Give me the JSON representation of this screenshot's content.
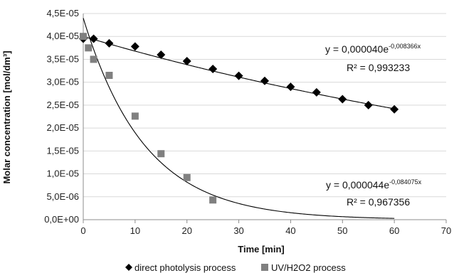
{
  "chart_data": {
    "type": "scatter",
    "title": "",
    "xlabel": "Time [min]",
    "ylabel": "Molar concentration [mol/dm³]",
    "xlim": [
      0,
      70
    ],
    "ylim": [
      0,
      4.5e-05
    ],
    "x_ticks": [
      0,
      10,
      20,
      30,
      40,
      50,
      60,
      70
    ],
    "x_tick_labels": [
      "0",
      "10",
      "20",
      "30",
      "40",
      "50",
      "60",
      "70"
    ],
    "y_ticks": [
      0,
      5e-06,
      1e-05,
      1.5e-05,
      2e-05,
      2.5e-05,
      3e-05,
      3.5e-05,
      4e-05,
      4.5e-05
    ],
    "y_tick_labels": [
      "0,0E+00",
      "5,0E-06",
      "1,0E-05",
      "1,5E-05",
      "2,0E-05",
      "2,5E-05",
      "3,0E-05",
      "3,5E-05",
      "4,0E-05",
      "4,5E-05"
    ],
    "grid": "horizontal",
    "legend_position": "bottom",
    "series": [
      {
        "name": "direct photolysis process",
        "marker": "diamond",
        "color": "#000000",
        "x": [
          0,
          2,
          5,
          10,
          15,
          20,
          25,
          30,
          35,
          40,
          45,
          50,
          55,
          60
        ],
        "y": [
          3.95e-05,
          3.95e-05,
          3.85e-05,
          3.78e-05,
          3.6e-05,
          3.46e-05,
          3.29e-05,
          3.14e-05,
          3.03e-05,
          2.9e-05,
          2.78e-05,
          2.63e-05,
          2.5e-05,
          2.41e-05
        ],
        "trendline": {
          "type": "exponential",
          "a": 4e-05,
          "k": -0.008366,
          "x_range": [
            0,
            60
          ],
          "equation_prefix": "y = 0,000040e",
          "equation_exponent": "-0,008366x",
          "r2_label": "R² = 0,993233"
        }
      },
      {
        "name": "UV/H2O2 process",
        "marker": "square",
        "color": "#808080",
        "x": [
          0,
          1,
          2,
          5,
          10,
          15,
          20,
          25
        ],
        "y": [
          4e-05,
          3.75e-05,
          3.5e-05,
          3.15e-05,
          2.26e-05,
          1.44e-05,
          9.2e-06,
          4.3e-06
        ],
        "trendline": {
          "type": "exponential",
          "a": 4.4e-05,
          "k": -0.084075,
          "x_range": [
            0,
            60
          ],
          "equation_prefix": "y = 0,000044e",
          "equation_exponent": "-0,084075x",
          "r2_label": "R² = 0,967356"
        }
      }
    ]
  }
}
